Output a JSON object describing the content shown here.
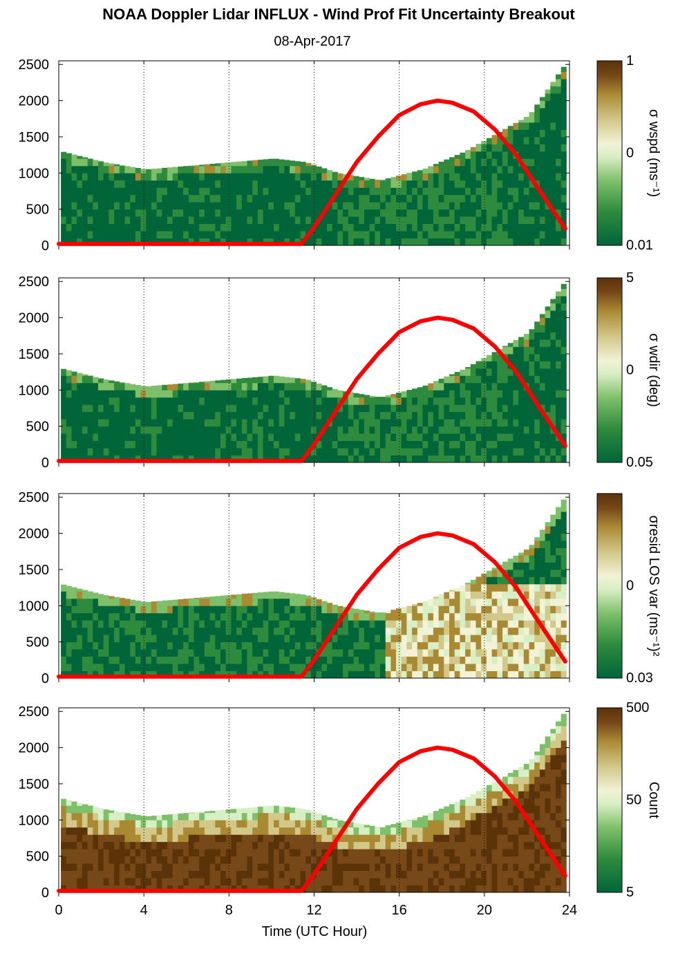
{
  "title": "NOAA Doppler Lidar INFLUX - Wind Prof Fit Uncertainty Breakout",
  "subtitle": "08-Apr-2017",
  "colors": {
    "sun_curve": "#ff0000",
    "colormap": [
      "#00663a",
      "#2e8a3c",
      "#7ec06a",
      "#d8eec4",
      "#f2f2d6",
      "#d2c88a",
      "#a98a32",
      "#774818",
      "#5a3308"
    ]
  },
  "chart_data": [
    {
      "type": "heatmap",
      "panel": "wspd",
      "xlabel": "",
      "ylabel": "",
      "xlim": [
        0,
        24
      ],
      "ylim": [
        0,
        2550
      ],
      "x_ticks": [
        0,
        4,
        8,
        12,
        16,
        20,
        24
      ],
      "y_ticks": [
        0,
        500,
        1000,
        1500,
        2000,
        2500
      ],
      "vertical_gridlines": [
        4,
        8,
        12,
        16,
        20
      ],
      "colorbar": {
        "label": "σ wspd (ms⁻¹)",
        "ticks": [
          "1",
          "0",
          "0.01"
        ],
        "scale": "log"
      },
      "boundary_height_m": [
        [
          0,
          1300
        ],
        [
          2,
          1150
        ],
        [
          4,
          1050
        ],
        [
          6,
          1100
        ],
        [
          8,
          1150
        ],
        [
          10,
          1200
        ],
        [
          11.5,
          1150
        ],
        [
          13,
          1000
        ],
        [
          15,
          900
        ],
        [
          17,
          1050
        ],
        [
          19,
          1300
        ],
        [
          20.5,
          1550
        ],
        [
          22,
          1800
        ],
        [
          23.8,
          2550
        ]
      ],
      "sun_elevation_curve": {
        "x": [
          0,
          11.4,
          12,
          13,
          14,
          15,
          16,
          17,
          17.8,
          18.5,
          19.5,
          20.5,
          21.5,
          22.5,
          23.8
        ],
        "y": [
          20,
          20,
          250,
          700,
          1150,
          1500,
          1800,
          1950,
          2000,
          1970,
          1850,
          1600,
          1250,
          800,
          230
        ]
      }
    },
    {
      "type": "heatmap",
      "panel": "wdir",
      "xlim": [
        0,
        24
      ],
      "ylim": [
        0,
        2550
      ],
      "x_ticks": [
        0,
        4,
        8,
        12,
        16,
        20,
        24
      ],
      "y_ticks": [
        0,
        500,
        1000,
        1500,
        2000,
        2500
      ],
      "vertical_gridlines": [
        4,
        8,
        12,
        16,
        20
      ],
      "colorbar": {
        "label": "σ wdir (deg)",
        "ticks": [
          "5",
          "0",
          "0.05"
        ],
        "scale": "log"
      },
      "boundary_height_m": [
        [
          0,
          1300
        ],
        [
          2,
          1150
        ],
        [
          4,
          1050
        ],
        [
          6,
          1100
        ],
        [
          8,
          1150
        ],
        [
          10,
          1200
        ],
        [
          11.5,
          1150
        ],
        [
          13,
          1000
        ],
        [
          15,
          900
        ],
        [
          17,
          1050
        ],
        [
          19,
          1300
        ],
        [
          20.5,
          1550
        ],
        [
          22,
          1800
        ],
        [
          23.8,
          2550
        ]
      ],
      "sun_elevation_curve": {
        "x": [
          0,
          11.4,
          12,
          13,
          14,
          15,
          16,
          17,
          17.8,
          18.5,
          19.5,
          20.5,
          21.5,
          22.5,
          23.8
        ],
        "y": [
          20,
          20,
          250,
          700,
          1150,
          1500,
          1800,
          1950,
          2000,
          1970,
          1850,
          1600,
          1250,
          800,
          230
        ]
      }
    },
    {
      "type": "heatmap",
      "panel": "resid_los_var",
      "xlim": [
        0,
        24
      ],
      "ylim": [
        0,
        2550
      ],
      "x_ticks": [
        0,
        4,
        8,
        12,
        16,
        20,
        24
      ],
      "y_ticks": [
        0,
        500,
        1000,
        1500,
        2000,
        2500
      ],
      "vertical_gridlines": [
        4,
        8,
        12,
        16,
        20
      ],
      "colorbar": {
        "label": "σresid LOS var (ms⁻¹)²",
        "ticks": [
          "0",
          "0.03"
        ],
        "scale": "log"
      },
      "boundary_height_m": [
        [
          0,
          1300
        ],
        [
          2,
          1150
        ],
        [
          4,
          1050
        ],
        [
          6,
          1100
        ],
        [
          8,
          1150
        ],
        [
          10,
          1200
        ],
        [
          11.5,
          1150
        ],
        [
          13,
          1000
        ],
        [
          15,
          900
        ],
        [
          17,
          1050
        ],
        [
          19,
          1300
        ],
        [
          20.5,
          1550
        ],
        [
          22,
          1800
        ],
        [
          23.8,
          2550
        ]
      ],
      "sun_elevation_curve": {
        "x": [
          0,
          11.4,
          12,
          13,
          14,
          15,
          16,
          17,
          17.8,
          18.5,
          19.5,
          20.5,
          21.5,
          22.5,
          23.8
        ],
        "y": [
          20,
          20,
          250,
          700,
          1150,
          1500,
          1800,
          1950,
          2000,
          1970,
          1850,
          1600,
          1250,
          800,
          230
        ]
      }
    },
    {
      "type": "heatmap",
      "panel": "count",
      "xlabel": "Time (UTC Hour)",
      "xlim": [
        0,
        24
      ],
      "ylim": [
        0,
        2550
      ],
      "x_ticks": [
        0,
        4,
        8,
        12,
        16,
        20,
        24
      ],
      "y_ticks": [
        0,
        500,
        1000,
        1500,
        2000,
        2500
      ],
      "vertical_gridlines": [
        4,
        8,
        12,
        16,
        20
      ],
      "colorbar": {
        "label": "Count",
        "ticks": [
          "500",
          "50",
          "5"
        ],
        "scale": "log"
      },
      "boundary_height_m": [
        [
          0,
          1300
        ],
        [
          2,
          1150
        ],
        [
          4,
          1050
        ],
        [
          6,
          1100
        ],
        [
          8,
          1150
        ],
        [
          10,
          1200
        ],
        [
          11.5,
          1150
        ],
        [
          13,
          1000
        ],
        [
          15,
          900
        ],
        [
          17,
          1050
        ],
        [
          19,
          1300
        ],
        [
          20.5,
          1550
        ],
        [
          22,
          1800
        ],
        [
          23.8,
          2550
        ]
      ],
      "sun_elevation_curve": {
        "x": [
          0,
          11.4,
          12,
          13,
          14,
          15,
          16,
          17,
          17.8,
          18.5,
          19.5,
          20.5,
          21.5,
          22.5,
          23.8
        ],
        "y": [
          20,
          20,
          250,
          700,
          1150,
          1500,
          1800,
          1950,
          2000,
          1970,
          1850,
          1600,
          1250,
          800,
          230
        ]
      }
    }
  ]
}
